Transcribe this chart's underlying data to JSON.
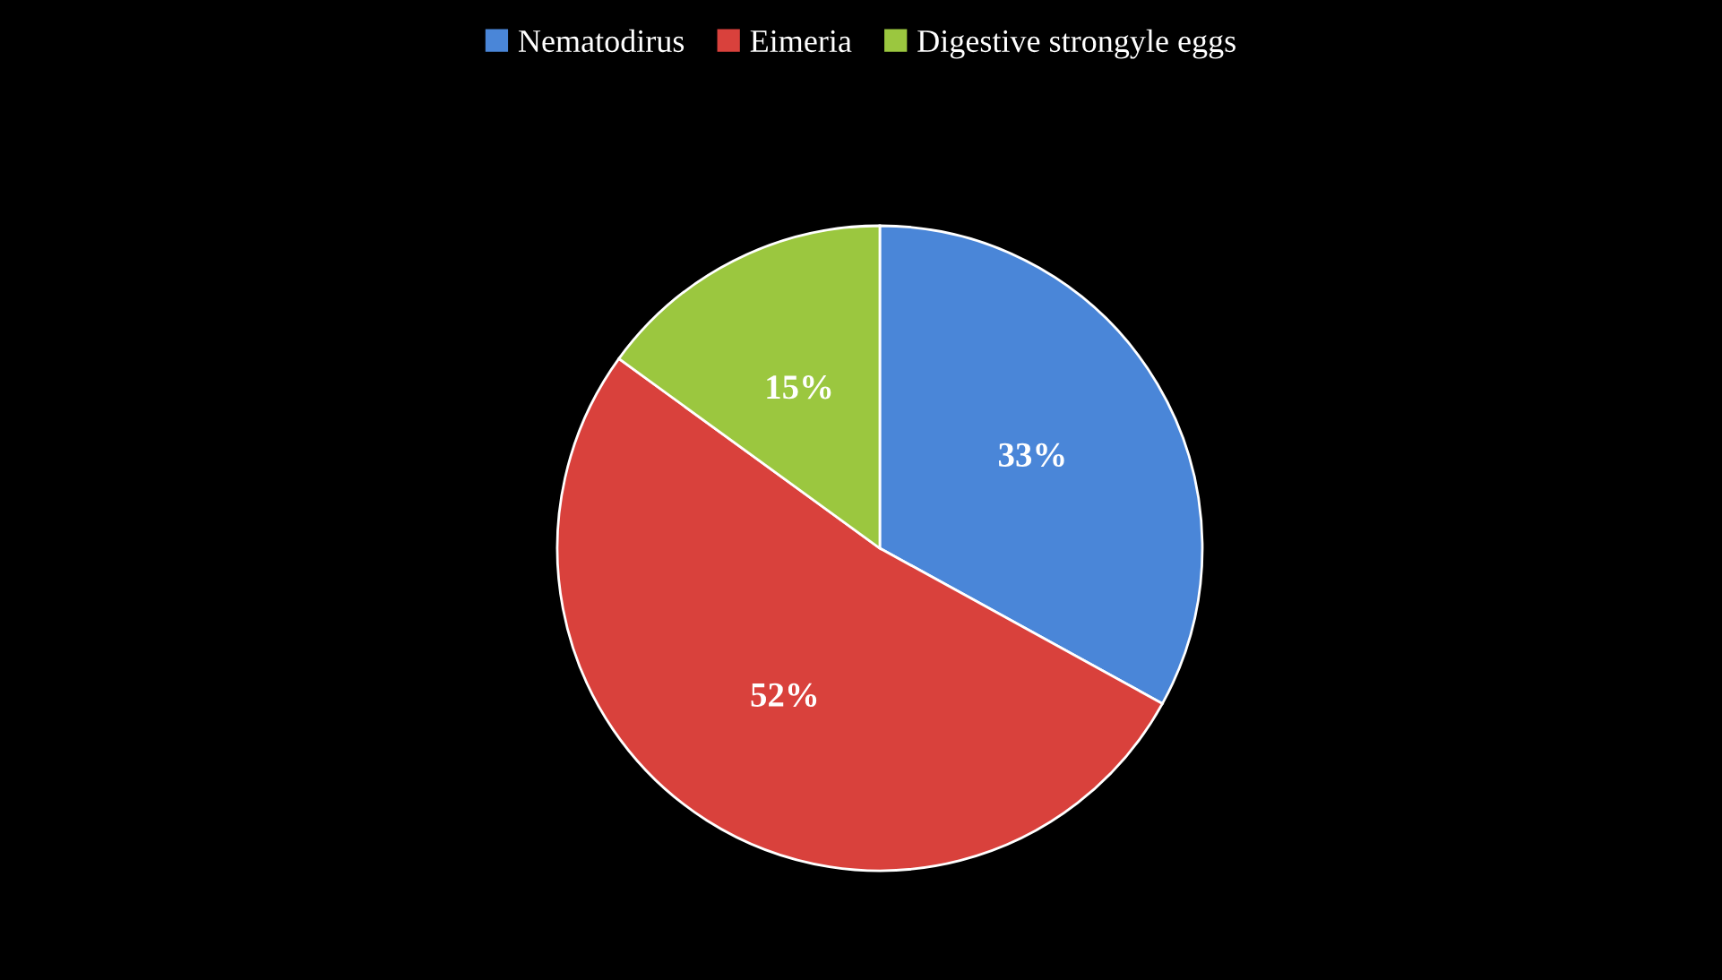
{
  "chart_data": {
    "type": "pie",
    "categories": [
      "Nematodirus",
      "Eimeria",
      "Digestive strongyle eggs"
    ],
    "values": [
      33,
      52,
      15
    ],
    "colors": [
      "#4a86d8",
      "#d9413c",
      "#9bc73f"
    ],
    "value_labels": [
      "33%",
      "52%",
      "15%"
    ],
    "legend": "top"
  }
}
